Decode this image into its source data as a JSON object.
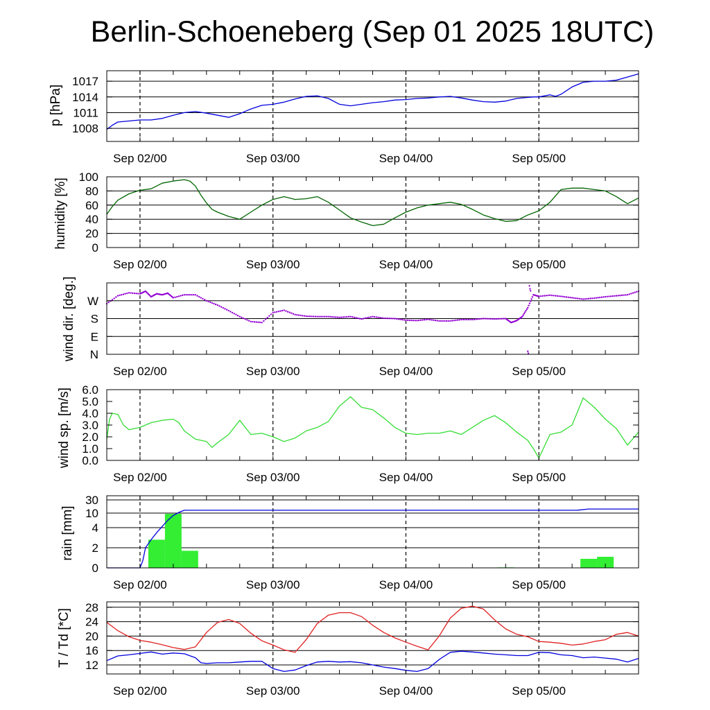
{
  "title": "Berlin-Schoeneberg (Sep 01 2025 18UTC)",
  "colors": {
    "pressure": "#0000dd",
    "humidity": "#006400",
    "wind_dir": "#9400d3",
    "wind_speed": "#33dd33",
    "rain_bar": "#33ee33",
    "rain_cum": "#0000dd",
    "temperature": "#e02020",
    "dewpoint": "#0000dd",
    "grid": "#000000"
  },
  "x_axis": {
    "range_hours": [
      0,
      96
    ],
    "day_ticks": [
      {
        "label": "Sep 02/00",
        "hour": 6
      },
      {
        "label": "Sep 03/00",
        "hour": 30
      },
      {
        "label": "Sep 04/00",
        "hour": 54
      },
      {
        "label": "Sep 05/00",
        "hour": 78
      }
    ],
    "minor_tick_every_hours": 6
  },
  "chart_data": [
    {
      "type": "line",
      "ylabel": "p [hPa]",
      "ylim": [
        1005.5,
        1019
      ],
      "yticks": [
        1008,
        1011,
        1014,
        1017
      ],
      "ytick_labels": [
        "1008",
        "1011",
        "1014",
        "1017"
      ],
      "grid": true,
      "series": [
        {
          "color_key": "pressure",
          "x": [
            0,
            1,
            2,
            4,
            6,
            8,
            10,
            12,
            14,
            16,
            18,
            20,
            22,
            24,
            26,
            28,
            30,
            32,
            34,
            36,
            38,
            40,
            42,
            44,
            46,
            48,
            50,
            52,
            54,
            56,
            58,
            60,
            62,
            64,
            66,
            68,
            70,
            72,
            74,
            76,
            77,
            78,
            80,
            81,
            82,
            84,
            86,
            88,
            90,
            92,
            94,
            96
          ],
          "y": [
            1007.8,
            1008.6,
            1009.2,
            1009.4,
            1009.6,
            1009.6,
            1009.9,
            1010.5,
            1011.0,
            1011.2,
            1010.9,
            1010.5,
            1010.1,
            1010.8,
            1011.7,
            1012.4,
            1012.6,
            1013.0,
            1013.6,
            1014.1,
            1014.2,
            1013.7,
            1012.6,
            1012.3,
            1012.6,
            1012.9,
            1013.1,
            1013.4,
            1013.5,
            1013.7,
            1013.8,
            1014.0,
            1014.1,
            1013.8,
            1013.4,
            1013.1,
            1013.0,
            1013.2,
            1013.7,
            1013.9,
            1014.0,
            1014.0,
            1014.4,
            1014.1,
            1014.5,
            1015.9,
            1016.8,
            1017.0,
            1017.0,
            1017.2,
            1017.8,
            1018.4
          ]
        }
      ]
    },
    {
      "type": "line",
      "ylabel": "humidity [%]",
      "ylim": [
        0,
        100
      ],
      "yticks": [
        0,
        20,
        40,
        60,
        80,
        100
      ],
      "ytick_labels": [
        "0",
        "20",
        "40",
        "60",
        "80",
        "100"
      ],
      "grid": true,
      "series": [
        {
          "color_key": "humidity",
          "x": [
            0,
            1,
            2,
            4,
            6,
            8,
            10,
            12,
            14,
            15,
            16,
            17,
            18,
            19,
            20,
            22,
            24,
            26,
            28,
            30,
            32,
            34,
            36,
            38,
            40,
            42,
            44,
            46,
            48,
            50,
            52,
            54,
            56,
            58,
            60,
            62,
            64,
            66,
            68,
            70,
            72,
            74,
            76,
            78,
            80,
            82,
            84,
            86,
            88,
            90,
            92,
            94,
            96
          ],
          "y": [
            47,
            58,
            67,
            76,
            81,
            83,
            91,
            94,
            96,
            94,
            87,
            74,
            63,
            54,
            50,
            44,
            40,
            50,
            60,
            68,
            72,
            68,
            69,
            72,
            64,
            53,
            42,
            36,
            31,
            33,
            42,
            50,
            56,
            60,
            62,
            64,
            61,
            54,
            46,
            41,
            37,
            38,
            46,
            52,
            64,
            82,
            84,
            84,
            82,
            80,
            72,
            62,
            70
          ]
        }
      ]
    },
    {
      "type": "scatter",
      "ylabel": "wind dir. [deg.]",
      "ylim": [
        0,
        360
      ],
      "yticks": [
        0,
        90,
        180,
        270
      ],
      "ytick_labels": [
        "N",
        "E",
        "S",
        "W"
      ],
      "grid": true,
      "series": [
        {
          "color_key": "wind_dir",
          "x": [
            0,
            2,
            4,
            6,
            7,
            8,
            9,
            10,
            11,
            12,
            14,
            16,
            18,
            20,
            22,
            24,
            26,
            28,
            30,
            32,
            34,
            36,
            38,
            40,
            42,
            44,
            46,
            48,
            50,
            52,
            54,
            56,
            58,
            60,
            62,
            64,
            66,
            68,
            70,
            72,
            73,
            74,
            75,
            76,
            77,
            78,
            80,
            82,
            84,
            86,
            88,
            90,
            92,
            94,
            96
          ],
          "y": [
            255,
            295,
            310,
            305,
            318,
            290,
            305,
            300,
            308,
            285,
            300,
            300,
            270,
            248,
            220,
            190,
            165,
            160,
            210,
            222,
            200,
            192,
            190,
            190,
            186,
            190,
            178,
            190,
            182,
            180,
            172,
            170,
            176,
            168,
            168,
            175,
            175,
            180,
            178,
            180,
            160,
            170,
            190,
            235,
            300,
            292,
            298,
            292,
            285,
            278,
            283,
            290,
            295,
            300,
            318
          ]
        }
      ]
    },
    {
      "type": "line",
      "ylabel": "wind sp. [m/s]",
      "ylim": [
        0,
        6
      ],
      "yticks": [
        0,
        1,
        2,
        3,
        4,
        5,
        6
      ],
      "ytick_labels": [
        "0.0",
        "1.0",
        "2.0",
        "3.0",
        "4.0",
        "5.0",
        "6.0"
      ],
      "grid": false,
      "series": [
        {
          "color_key": "wind_speed",
          "x": [
            0,
            0.5,
            1,
            2,
            3,
            4,
            6,
            8,
            10,
            12,
            13,
            14,
            16,
            18,
            19,
            20,
            22,
            24,
            26,
            28,
            30,
            32,
            34,
            36,
            38,
            40,
            42,
            44,
            46,
            48,
            50,
            52,
            54,
            56,
            58,
            60,
            62,
            64,
            66,
            68,
            70,
            72,
            74,
            76,
            77,
            78,
            80,
            82,
            84,
            86,
            88,
            90,
            92,
            94,
            96
          ],
          "y": [
            1.8,
            3.5,
            4.0,
            3.9,
            3.0,
            2.6,
            2.8,
            3.2,
            3.4,
            3.5,
            3.2,
            2.5,
            1.8,
            1.6,
            1.1,
            1.5,
            2.2,
            3.4,
            2.2,
            2.3,
            2.0,
            1.6,
            1.9,
            2.5,
            2.8,
            3.3,
            4.6,
            5.4,
            4.5,
            4.3,
            3.6,
            2.8,
            2.3,
            2.2,
            2.3,
            2.3,
            2.5,
            2.2,
            2.8,
            3.4,
            3.8,
            3.2,
            2.4,
            1.7,
            1.0,
            0.2,
            2.2,
            2.4,
            3.0,
            5.3,
            4.5,
            3.5,
            2.7,
            1.3,
            2.4
          ]
        }
      ]
    },
    {
      "type": "bar",
      "ylabel": "rain [mm]",
      "ylim": [
        0,
        30
      ],
      "yticks": [
        0,
        2,
        4,
        10,
        30
      ],
      "ytick_labels": [
        "0",
        "2",
        "4",
        "10",
        "30"
      ],
      "grid": true,
      "bars": {
        "color_key": "rain_bar",
        "x_start": [
          7.5,
          10.5,
          13.5,
          70.5,
          85.5,
          88.5
        ],
        "x_end": [
          10.5,
          13.5,
          16.5,
          73.5,
          88.5,
          91.5
        ],
        "values": [
          2.8,
          9.7,
          1.7,
          0.05,
          0.9,
          1.1
        ]
      },
      "series": [
        {
          "name": "cumulative",
          "color_key": "rain_cum",
          "x": [
            0,
            5,
            6,
            6.5,
            7,
            8,
            9,
            10,
            11,
            12,
            13,
            14,
            77,
            85,
            87,
            96
          ],
          "y": [
            0,
            0,
            0,
            0.7,
            2.0,
            2.8,
            3.5,
            4.5,
            7.0,
            9.0,
            11.0,
            14.3,
            14.3,
            14.4,
            16.2,
            16.2
          ]
        }
      ]
    },
    {
      "type": "line",
      "ylabel": "T / Td [*C]",
      "ylim": [
        9.5,
        29.5
      ],
      "yticks": [
        12,
        16,
        20,
        24,
        28
      ],
      "ytick_labels": [
        "12",
        "16",
        "20",
        "24",
        "28"
      ],
      "grid": true,
      "series": [
        {
          "name": "T",
          "color_key": "temperature",
          "x": [
            0,
            2,
            4,
            6,
            8,
            10,
            12,
            14,
            16,
            18,
            20,
            22,
            24,
            26,
            28,
            30,
            32,
            34,
            36,
            38,
            40,
            42,
            44,
            46,
            48,
            50,
            52,
            54,
            56,
            58,
            60,
            62,
            64,
            66,
            68,
            70,
            72,
            74,
            76,
            78,
            80,
            82,
            84,
            86,
            88,
            90,
            92,
            94,
            96
          ],
          "y": [
            23.8,
            21.5,
            19.8,
            18.8,
            18.3,
            17.6,
            16.8,
            16.3,
            17.0,
            21.0,
            23.8,
            24.6,
            23.5,
            20.8,
            18.7,
            17.5,
            16.2,
            15.5,
            19.0,
            23.5,
            25.8,
            26.5,
            26.5,
            25.4,
            23.0,
            21.0,
            19.5,
            18.3,
            17.2,
            16.2,
            20.0,
            25.0,
            27.7,
            28.3,
            27.5,
            24.5,
            22.0,
            20.5,
            19.8,
            18.5,
            18.3,
            18.0,
            17.5,
            17.8,
            18.5,
            19.0,
            20.5,
            21.0,
            20.0
          ]
        },
        {
          "name": "Td",
          "color_key": "dewpoint",
          "x": [
            0,
            2,
            4,
            6,
            8,
            10,
            12,
            14,
            16,
            17,
            18,
            20,
            22,
            24,
            26,
            28,
            30,
            32,
            34,
            36,
            38,
            40,
            42,
            44,
            46,
            48,
            50,
            52,
            54,
            56,
            58,
            60,
            62,
            64,
            66,
            68,
            70,
            72,
            74,
            76,
            78,
            80,
            82,
            84,
            86,
            88,
            90,
            92,
            94,
            96
          ],
          "y": [
            13.2,
            14.5,
            14.8,
            15.2,
            15.6,
            15.0,
            15.3,
            15.1,
            14.0,
            12.6,
            12.4,
            12.6,
            12.6,
            12.8,
            13.0,
            13.0,
            11.0,
            10.2,
            10.6,
            11.8,
            12.8,
            13.0,
            12.8,
            12.9,
            12.6,
            12.0,
            11.4,
            11.0,
            10.5,
            10.2,
            11.0,
            13.5,
            15.5,
            15.8,
            15.6,
            15.3,
            15.0,
            14.8,
            14.6,
            14.6,
            15.5,
            15.4,
            14.8,
            14.6,
            14.0,
            14.2,
            13.9,
            13.6,
            12.8,
            13.8
          ]
        }
      ]
    }
  ]
}
